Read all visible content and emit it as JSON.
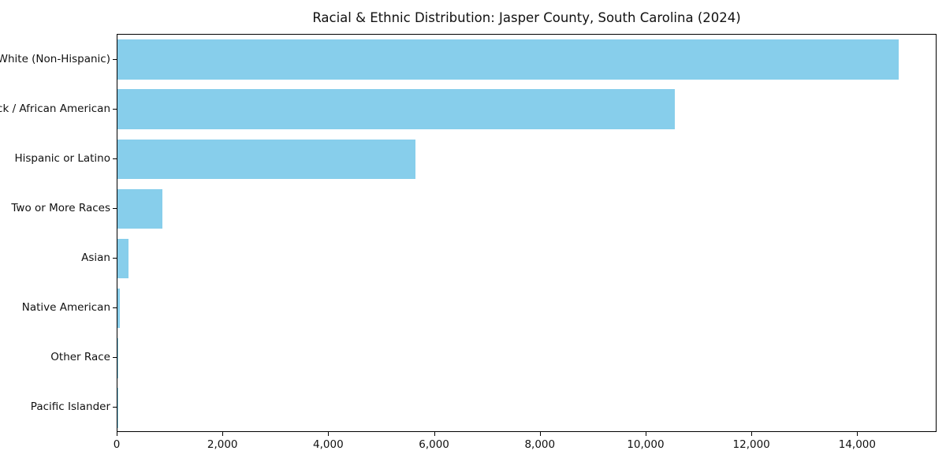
{
  "chart_data": {
    "type": "bar",
    "orientation": "horizontal",
    "title": "Racial & Ethnic Distribution: Jasper County, South Carolina (2024)",
    "categories": [
      "White (Non-Hispanic)",
      "Black / African American",
      "Hispanic or Latino",
      "Two or More Races",
      "Asian",
      "Native American",
      "Other Race",
      "Pacific Islander"
    ],
    "values": [
      14800,
      10550,
      5650,
      850,
      210,
      40,
      20,
      10
    ],
    "xlabel": "",
    "ylabel": "",
    "xlim": [
      0,
      15500
    ],
    "x_ticks": [
      0,
      2000,
      4000,
      6000,
      8000,
      10000,
      12000,
      14000
    ],
    "x_tick_labels": [
      "0",
      "2,000",
      "4,000",
      "6,000",
      "8,000",
      "10,000",
      "12,000",
      "14,000"
    ],
    "bar_color": "#87CEEB",
    "grid": false,
    "legend": "none",
    "bar_fraction": 0.8
  }
}
